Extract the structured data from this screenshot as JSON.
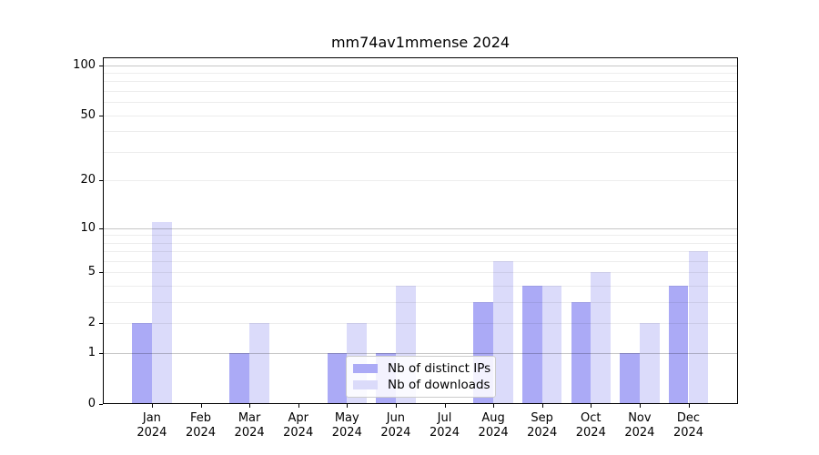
{
  "title": "mm74av1mmense 2024",
  "chart_data": {
    "type": "bar",
    "title": "mm74av1mmense 2024",
    "categories": [
      "Jan 2024",
      "Feb 2024",
      "Mar 2024",
      "Apr 2024",
      "May 2024",
      "Jun 2024",
      "Jul 2024",
      "Aug 2024",
      "Sep 2024",
      "Oct 2024",
      "Nov 2024",
      "Dec 2024"
    ],
    "series": [
      {
        "name": "Nb of distinct IPs",
        "color": "#abaaf6",
        "values": [
          2,
          0,
          1,
          0,
          1,
          1,
          0,
          3,
          4,
          3,
          1,
          4
        ]
      },
      {
        "name": "Nb of downloads",
        "color": "#dbdbfa",
        "values": [
          11,
          0,
          2,
          0,
          2,
          4,
          0,
          6,
          4,
          5,
          2,
          7
        ]
      }
    ],
    "xlabel": "",
    "ylabel": "",
    "yscale": "log1p",
    "yticks": [
      0,
      1,
      2,
      5,
      10,
      20,
      50,
      100
    ],
    "ylim": [
      0,
      112
    ],
    "grid": "horizontal",
    "legend_position": "lower-center-inside"
  },
  "colors": {
    "background": "#ffffff",
    "axis": "#000000",
    "grid_major": "rgba(0,0,0,0.22)",
    "grid_minor": "rgba(0,0,0,0.07)",
    "legend_border": "#cccccc"
  }
}
